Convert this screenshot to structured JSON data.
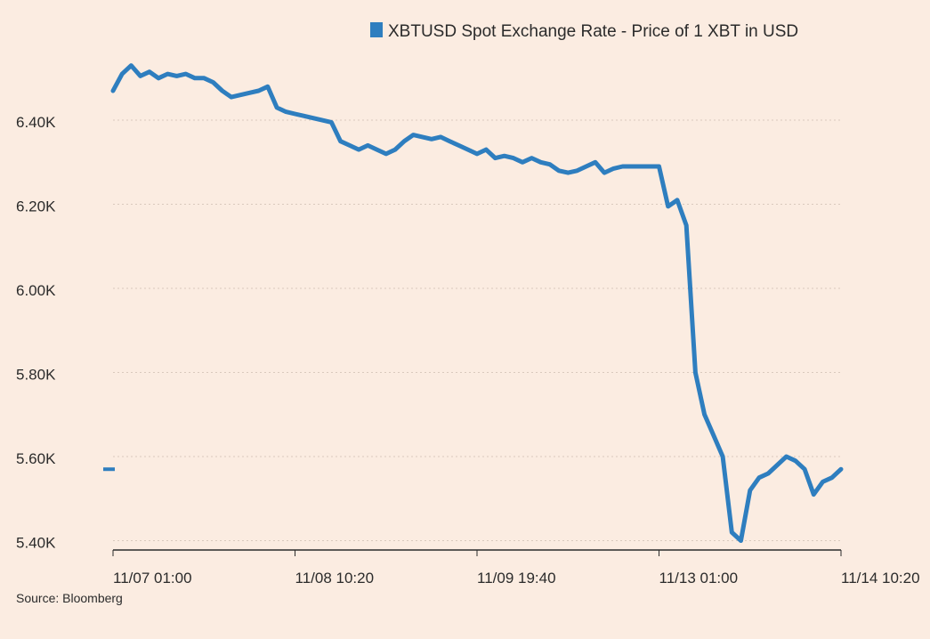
{
  "chart_data": {
    "type": "line",
    "legend": {
      "label": "XBTUSD Spot Exchange Rate - Price of 1 XBT in USD",
      "color": "#2e7ebf",
      "position": "top-right"
    },
    "source": "Source: Bloomberg",
    "y_ticks": [
      {
        "value": 5400,
        "label": "5.40K"
      },
      {
        "value": 5600,
        "label": "5.60K"
      },
      {
        "value": 5800,
        "label": "5.80K"
      },
      {
        "value": 6000,
        "label": "6.00K"
      },
      {
        "value": 6200,
        "label": "6.20K"
      },
      {
        "value": 6400,
        "label": "6.40K"
      }
    ],
    "ylim": [
      5380,
      6580
    ],
    "grid": "horizontal dotted",
    "last_value": 5570,
    "x_ticks": [
      {
        "index": 0,
        "label": "11/07 01:00"
      },
      {
        "index": 20,
        "label": "11/08 10:20"
      },
      {
        "index": 40,
        "label": "11/09 19:40"
      },
      {
        "index": 60,
        "label": "11/13 01:00"
      },
      {
        "index": 80,
        "label": "11/14 10:20"
      }
    ],
    "series": [
      {
        "color": "#2e7ebf",
        "values": [
          6470,
          6510,
          6530,
          6505,
          6515,
          6500,
          6510,
          6505,
          6510,
          6500,
          6500,
          6490,
          6470,
          6455,
          6460,
          6465,
          6470,
          6480,
          6430,
          6420,
          6415,
          6410,
          6405,
          6400,
          6395,
          6350,
          6340,
          6330,
          6340,
          6330,
          6320,
          6330,
          6350,
          6365,
          6360,
          6355,
          6360,
          6350,
          6340,
          6330,
          6320,
          6330,
          6310,
          6315,
          6310,
          6300,
          6310,
          6300,
          6295,
          6280,
          6275,
          6280,
          6290,
          6300,
          6275,
          6285,
          6290,
          6290,
          6290,
          6290,
          6290,
          6195,
          6210,
          6150,
          5800,
          5700,
          5650,
          5600,
          5420,
          5400,
          5520,
          5550,
          5560,
          5580,
          5600,
          5590,
          5570,
          5510,
          5540,
          5550,
          5570
        ]
      }
    ]
  }
}
